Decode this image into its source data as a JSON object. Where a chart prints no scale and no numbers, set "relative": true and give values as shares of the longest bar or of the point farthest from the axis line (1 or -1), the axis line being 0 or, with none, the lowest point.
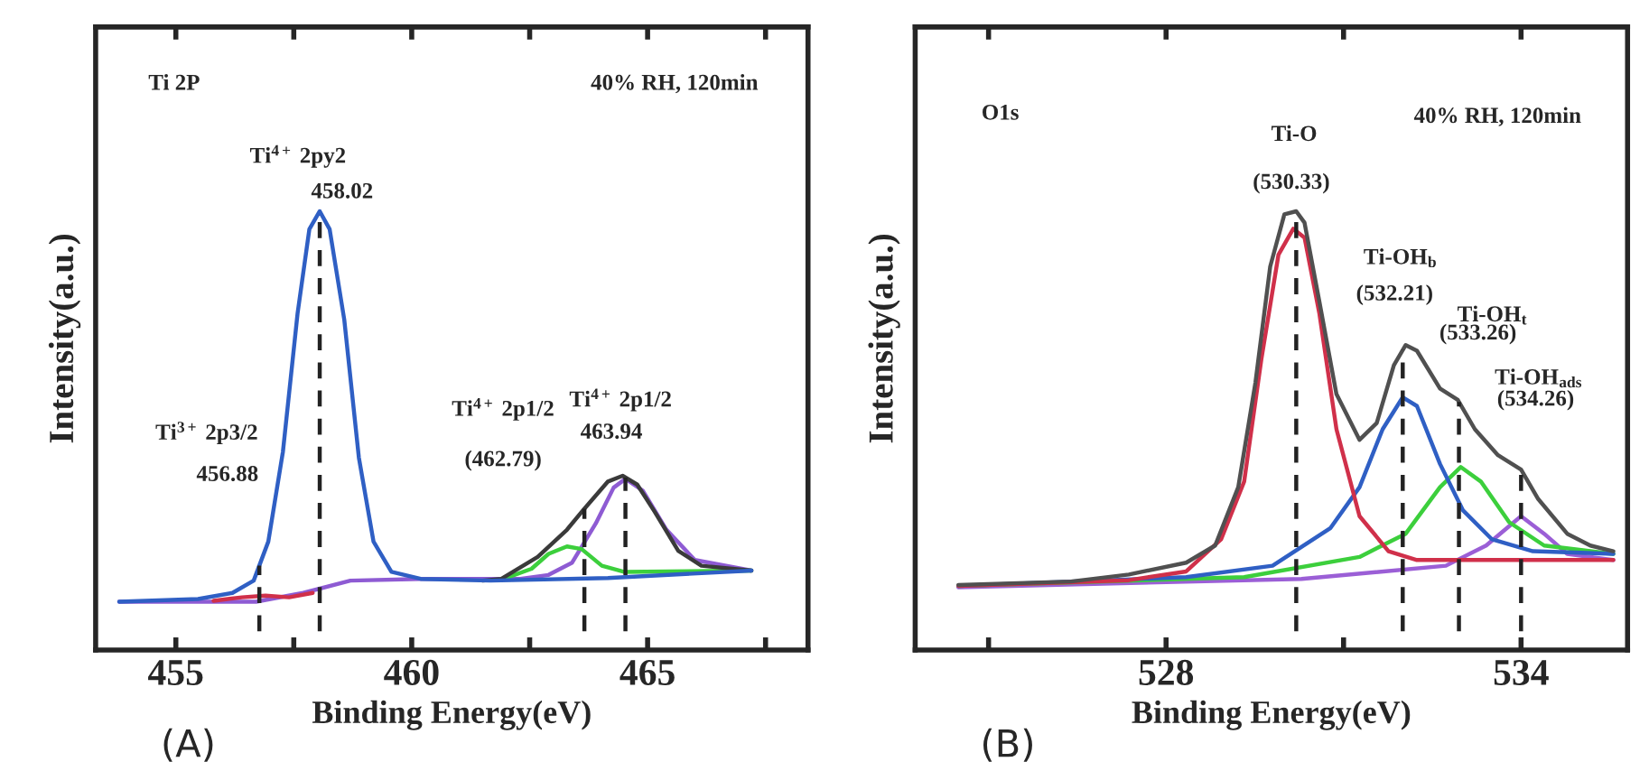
{
  "chart_data": [
    {
      "type": "line",
      "title": "(A)",
      "xlabel": "Binding Energy(eV)",
      "ylabel": "Intensity(a.u.)",
      "relative": true,
      "tick_labels": "x",
      "grid": false,
      "legend": false,
      "xlim": [
        453.3,
        468.4
      ],
      "xticks": [
        455,
        {
          "value": 457.5,
          "label": null
        },
        460,
        {
          "value": 462.5,
          "label": null
        },
        465,
        {
          "value": 467.5,
          "label": null
        }
      ],
      "series": [
        {
          "color": "#8e5bd3",
          "x": [
            453.8,
            456.7,
            457.7,
            458.7,
            460.2,
            462.3,
            462.9,
            463.4,
            463.9,
            464.28,
            464.53,
            464.9,
            465.4,
            466.0,
            467.2
          ],
          "values": [
            0.11,
            0.11,
            0.13,
            0.158,
            0.162,
            0.162,
            0.171,
            0.199,
            0.288,
            0.37,
            0.39,
            0.363,
            0.274,
            0.205,
            0.181
          ]
        },
        {
          "color": "#d0304a",
          "x": [
            455.8,
            456.4,
            456.9,
            457.4,
            457.9
          ],
          "values": [
            0.112,
            0.12,
            0.124,
            0.12,
            0.13
          ]
        },
        {
          "color": "#3ccf3c",
          "x": [
            461.9,
            462.54,
            462.9,
            463.29,
            463.6,
            464.03,
            464.5,
            467.2
          ],
          "values": [
            0.16,
            0.185,
            0.219,
            0.236,
            0.23,
            0.192,
            0.178,
            0.181
          ]
        },
        {
          "color": "#3a3a3a",
          "x": [
            461.5,
            461.9,
            462.67,
            463.29,
            463.66,
            464.16,
            464.47,
            464.78,
            465.15,
            465.65,
            466.14,
            467.2
          ],
          "values": [
            0.158,
            0.162,
            0.212,
            0.274,
            0.322,
            0.384,
            0.397,
            0.377,
            0.315,
            0.226,
            0.192,
            0.181
          ]
        },
        {
          "color": "#2f5fc4",
          "x": [
            453.8,
            455.47,
            456.2,
            456.65,
            456.96,
            457.27,
            457.58,
            457.83,
            458.05,
            458.26,
            458.57,
            458.88,
            459.19,
            459.57,
            460.19,
            461.67,
            464.16,
            467.2
          ],
          "values": [
            0.11,
            0.116,
            0.13,
            0.158,
            0.247,
            0.452,
            0.767,
            0.959,
            1.0,
            0.959,
            0.753,
            0.438,
            0.247,
            0.178,
            0.162,
            0.158,
            0.164,
            0.181
          ]
        }
      ],
      "ref_lines": [
        {
          "axis": "x",
          "value": 456.77,
          "line_style": "dashed",
          "color": "#222222"
        },
        {
          "axis": "x",
          "value": 458.05,
          "line_style": "dashed",
          "color": "#222222"
        },
        {
          "axis": "x",
          "value": 463.66,
          "line_style": "dashed",
          "color": "#222222"
        },
        {
          "axis": "x",
          "value": 464.53,
          "line_style": "dashed",
          "color": "#222222"
        }
      ],
      "annotations": [
        "Ti 2P",
        "40% RH, 120min",
        "Ti$^{4+}$ 2py2",
        "458.02",
        "Ti$^{3+}$ 2p3/2",
        "456.88",
        "Ti$^{4+}$ 2p1/2",
        "(462.79)",
        "Ti$^{4+}$ 2p1/2",
        "463.94"
      ]
    },
    {
      "type": "line",
      "title": "(B)",
      "xlabel": "Binding Energy(eV)",
      "ylabel": "Intensity(a.u.)",
      "relative": true,
      "tick_labels": "x",
      "grid": false,
      "legend": false,
      "xlim": [
        523.76,
        535.8
      ],
      "xticks": [
        {
          "value": 525,
          "label": null
        },
        528,
        {
          "value": 531,
          "label": null
        },
        534
      ],
      "series": [
        {
          "color": "#9b5fd6",
          "x": [
            524.49,
            530.29,
            532.73,
            533.41,
            534.0,
            534.39,
            534.78,
            535.56
          ],
          "values": [
            0.143,
            0.162,
            0.192,
            0.238,
            0.305,
            0.265,
            0.219,
            0.205
          ]
        },
        {
          "color": "#3ccf3c",
          "x": [
            524.49,
            529.32,
            531.27,
            532.05,
            532.63,
            532.98,
            533.32,
            533.8,
            534.39,
            535.56
          ],
          "values": [
            0.146,
            0.166,
            0.212,
            0.265,
            0.371,
            0.417,
            0.384,
            0.291,
            0.238,
            0.219
          ]
        },
        {
          "color": "#2f5fc4",
          "x": [
            524.49,
            528.34,
            529.8,
            530.78,
            531.27,
            531.66,
            532.0,
            532.24,
            532.63,
            533.02,
            533.51,
            534.2,
            535.56
          ],
          "values": [
            0.146,
            0.166,
            0.192,
            0.278,
            0.371,
            0.503,
            0.576,
            0.556,
            0.424,
            0.318,
            0.252,
            0.225,
            0.219
          ]
        },
        {
          "color": "#d0304a",
          "x": [
            524.49,
            527.37,
            528.34,
            528.93,
            529.32,
            529.61,
            529.9,
            530.15,
            530.34,
            530.59,
            530.88,
            531.27,
            531.76,
            532.24,
            535.56
          ],
          "values": [
            0.146,
            0.159,
            0.179,
            0.252,
            0.384,
            0.662,
            0.901,
            0.96,
            0.94,
            0.768,
            0.503,
            0.305,
            0.225,
            0.205,
            0.205
          ]
        },
        {
          "color": "#505050",
          "x": [
            524.49,
            526.39,
            527.37,
            528.34,
            528.83,
            529.22,
            529.51,
            529.76,
            530.0,
            530.2,
            530.34,
            530.59,
            530.88,
            531.27,
            531.56,
            531.85,
            532.05,
            532.24,
            532.63,
            532.93,
            533.22,
            533.61,
            534.0,
            534.29,
            534.78,
            535.17,
            535.56
          ],
          "values": [
            0.148,
            0.156,
            0.172,
            0.199,
            0.238,
            0.371,
            0.609,
            0.874,
            0.993,
            1.0,
            0.974,
            0.795,
            0.583,
            0.479,
            0.517,
            0.649,
            0.695,
            0.682,
            0.596,
            0.57,
            0.503,
            0.444,
            0.411,
            0.344,
            0.265,
            0.238,
            0.225
          ]
        }
      ],
      "ref_lines": [
        {
          "axis": "x",
          "value": 530.2,
          "line_style": "dashed",
          "color": "#222222"
        },
        {
          "axis": "x",
          "value": 532.0,
          "line_style": "dashed",
          "color": "#222222"
        },
        {
          "axis": "x",
          "value": 532.95,
          "line_style": "dashed",
          "color": "#222222"
        },
        {
          "axis": "x",
          "value": 534.0,
          "line_style": "dashed",
          "color": "#222222"
        }
      ],
      "annotations": [
        "O1s",
        "40% RH, 120min",
        "Ti-O",
        "(530.33)",
        "Ti-OH$_{b}$",
        "(532.21)",
        "Ti-OH$_{t}$",
        "(533.26)",
        "Ti-OH$_{ads}$",
        "(534.26)"
      ]
    }
  ]
}
